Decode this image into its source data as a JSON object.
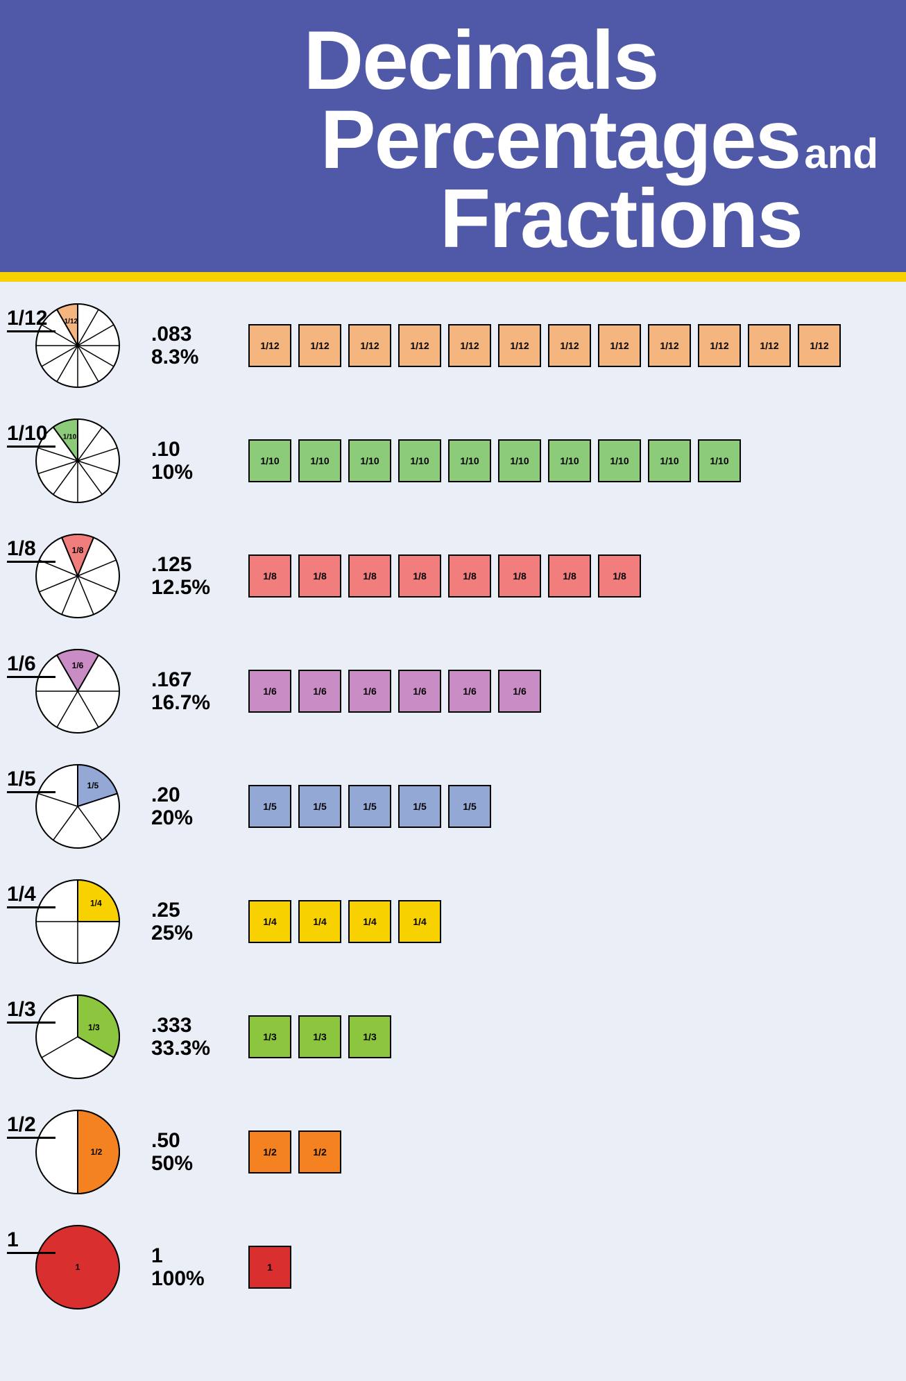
{
  "header": {
    "line1": "Decimals",
    "line2": "Percentages",
    "and": "and",
    "line3": "Fractions",
    "bg_color": "#5058a8",
    "underline_color": "#f7d200",
    "text_color": "#ffffff"
  },
  "page_bg": "#eaeef7",
  "pie_radius": 60,
  "pie_stroke": "#000000",
  "box_stroke": "#000000",
  "rows": [
    {
      "fraction": "1/12",
      "decimal": ".083",
      "percent": "8.3%",
      "slices": 12,
      "slice_start_deg": -30,
      "color": "#f5b57e",
      "box_size": 62,
      "box_label": "1/12",
      "full_fill": false
    },
    {
      "fraction": "1/10",
      "decimal": ".10",
      "percent": "10%",
      "slices": 10,
      "slice_start_deg": -36,
      "color": "#8bcb7a",
      "box_size": 62,
      "box_label": "1/10",
      "full_fill": false
    },
    {
      "fraction": "1/8",
      "decimal": ".125",
      "percent": "12.5%",
      "slices": 8,
      "slice_start_deg": -22.5,
      "color": "#f17d7d",
      "box_size": 62,
      "box_label": "1/8",
      "full_fill": false
    },
    {
      "fraction": "1/6",
      "decimal": ".167",
      "percent": "16.7%",
      "slices": 6,
      "slice_start_deg": -30,
      "color": "#c98cc4",
      "box_size": 62,
      "box_label": "1/6",
      "full_fill": false
    },
    {
      "fraction": "1/5",
      "decimal": ".20",
      "percent": "20%",
      "slices": 5,
      "slice_start_deg": 0,
      "color": "#93a8d4",
      "box_size": 62,
      "box_label": "1/5",
      "full_fill": false
    },
    {
      "fraction": "1/4",
      "decimal": ".25",
      "percent": "25%",
      "slices": 4,
      "slice_start_deg": 0,
      "color": "#f7d200",
      "box_size": 62,
      "box_label": "1/4",
      "full_fill": false
    },
    {
      "fraction": "1/3",
      "decimal": ".333",
      "percent": "33.3%",
      "slices": 3,
      "slice_start_deg": 0,
      "color": "#8bc63e",
      "box_size": 62,
      "box_label": "1/3",
      "full_fill": false
    },
    {
      "fraction": "1/2",
      "decimal": ".50",
      "percent": "50%",
      "slices": 2,
      "slice_start_deg": 0,
      "color": "#f58220",
      "box_size": 62,
      "box_label": "1/2",
      "full_fill": false
    },
    {
      "fraction": "1",
      "decimal": "1",
      "percent": "100%",
      "slices": 1,
      "slice_start_deg": 0,
      "color": "#d92f2f",
      "box_size": 62,
      "box_label": "1",
      "full_fill": true
    }
  ]
}
